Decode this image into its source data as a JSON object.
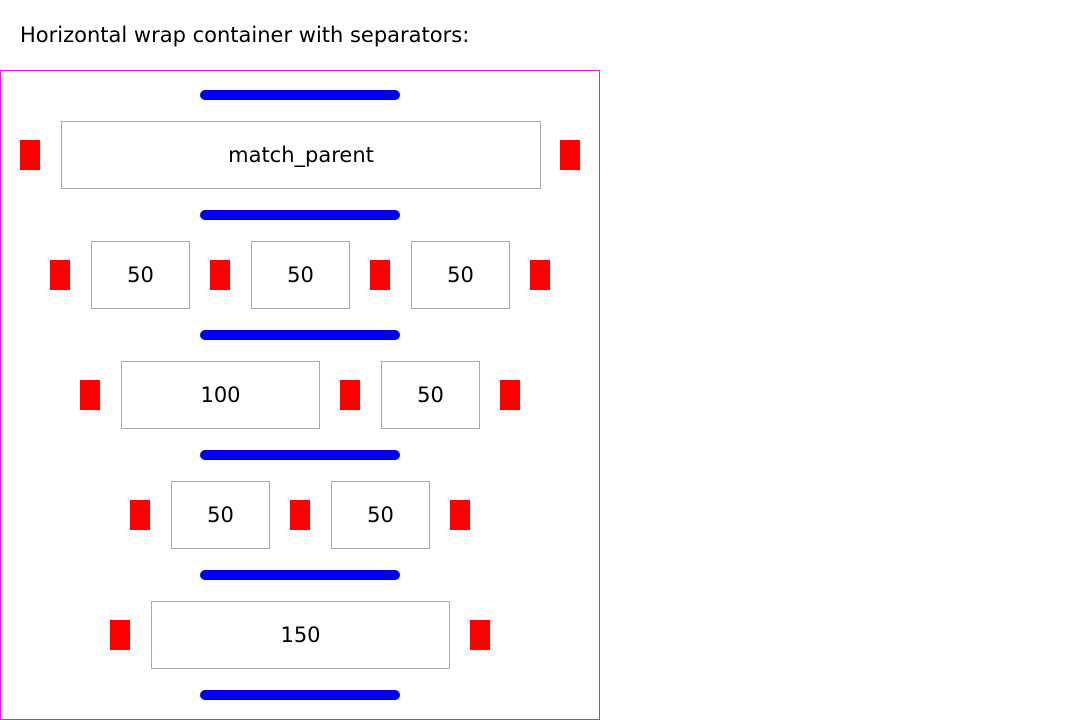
{
  "caption": "Horizontal wrap container with separators:",
  "colors": {
    "container_border": "#e020e0",
    "line_separator": "#0000ee",
    "item_separator": "#ff0000",
    "item_border": "#aaaaaa"
  },
  "rows": [
    {
      "items": [
        "match_parent"
      ]
    },
    {
      "items": [
        "50",
        "50",
        "50"
      ]
    },
    {
      "items": [
        "100",
        "50"
      ]
    },
    {
      "items": [
        "50",
        "50"
      ]
    },
    {
      "items": [
        "150"
      ]
    }
  ]
}
